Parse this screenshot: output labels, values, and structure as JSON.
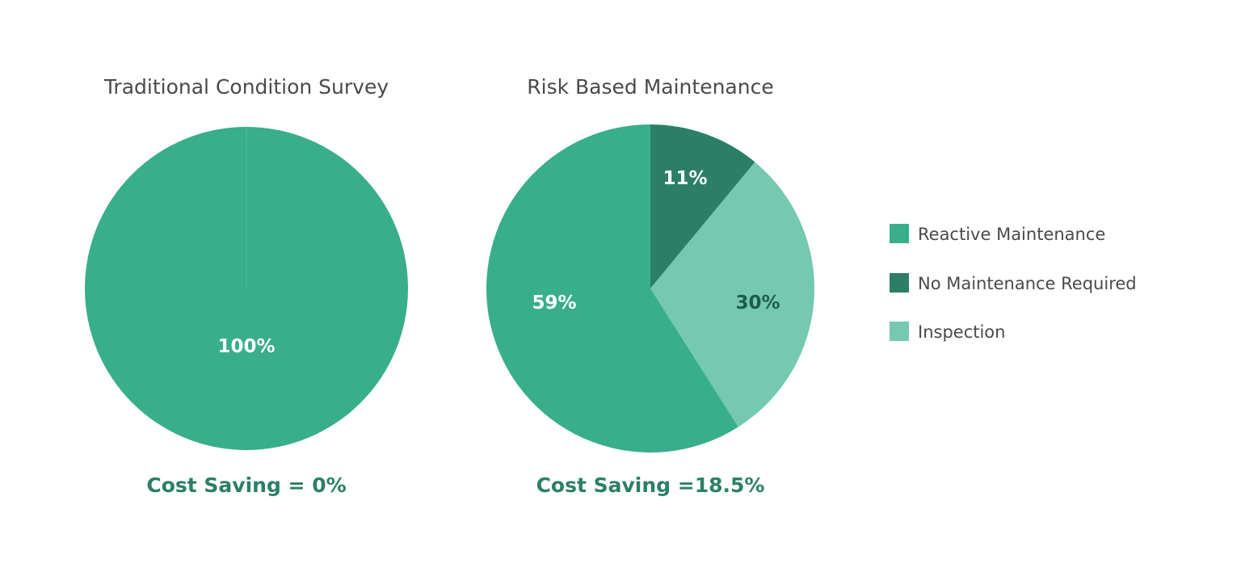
{
  "chart_data": [
    {
      "type": "pie",
      "title": "Traditional Condition Survey",
      "categories": [
        "Reactive Maintenance"
      ],
      "values": [
        100
      ],
      "data_labels": [
        "100%"
      ],
      "colors": [
        "#38ae8b"
      ],
      "label_colors": [
        "#ffffff"
      ],
      "footer": "Cost Saving = 0%"
    },
    {
      "type": "pie",
      "title": "Risk Based Maintenance",
      "categories": [
        "No Maintenance Required",
        "Inspection",
        "Reactive Maintenance"
      ],
      "values": [
        11,
        30,
        59
      ],
      "data_labels": [
        "11%",
        "30%",
        "59%"
      ],
      "colors": [
        "#2b7f67",
        "#74c9b0",
        "#38ae8b"
      ],
      "label_colors": [
        "#ffffff",
        "#1f5c4a",
        "#ffffff"
      ],
      "footer": "Cost Saving =18.5%"
    }
  ],
  "legend": {
    "placement": "right",
    "items": [
      {
        "label": "Reactive Maintenance",
        "color": "#38ae8b"
      },
      {
        "label": "No Maintenance Required",
        "color": "#2b7f67"
      },
      {
        "label": "Inspection",
        "color": "#74c9b0"
      }
    ]
  }
}
